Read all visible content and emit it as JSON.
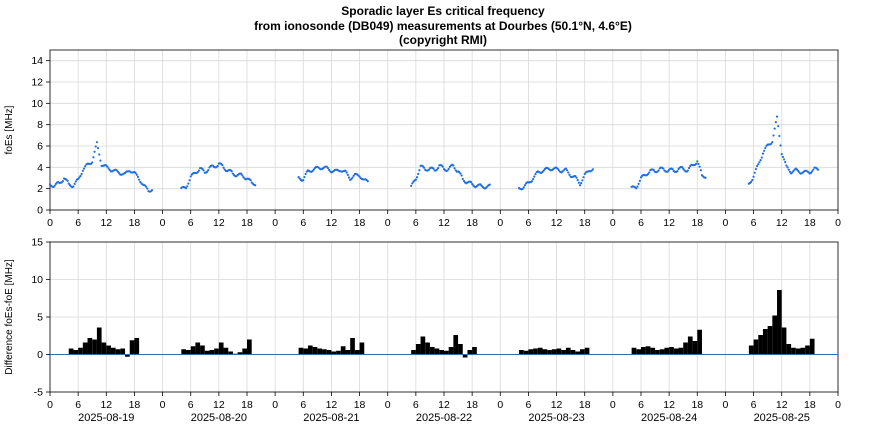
{
  "title": {
    "line1": "Sporadic layer Es critical frequency",
    "line2": "from ionosonde (DB049) measurements at Dourbes (50.1°N, 4.6°E)",
    "line3": "(copyright RMI)"
  },
  "colors": {
    "fo_es": "#1f6fe0",
    "difference": "#000000",
    "zero_line": "#2f6db0",
    "grid": "#d9d9d9"
  },
  "chart_data": [
    {
      "type": "scatter",
      "ylabel": "foEs [MHz]",
      "ylim": [
        0,
        15
      ],
      "yticks": [
        0,
        2,
        4,
        6,
        8,
        10,
        12,
        14
      ],
      "grid": true,
      "xtick_labels": [
        "0",
        "6",
        "12",
        "18",
        "0",
        "6",
        "12",
        "18",
        "0",
        "6",
        "12",
        "18",
        "0",
        "6",
        "12",
        "18",
        "0",
        "6",
        "12",
        "18",
        "0",
        "6",
        "12",
        "18",
        "0",
        "6",
        "12",
        "18",
        "0"
      ],
      "days": [
        {
          "date": "2025-08-19",
          "hours": [
            0,
            1,
            2,
            3,
            4,
            5,
            6,
            7,
            8,
            9,
            10,
            11,
            12,
            13,
            14,
            15,
            16,
            17,
            18,
            19,
            20,
            21,
            22,
            23
          ],
          "values": [
            2.4,
            2.3,
            2.5,
            3.0,
            2.4,
            2.3,
            2.8,
            3.8,
            4.2,
            4.6,
            6.2,
            4.3,
            4.0,
            3.8,
            3.6,
            3.5,
            3.3,
            3.8,
            3.4,
            3.0,
            2.2,
            1.9,
            null,
            null
          ]
        },
        {
          "date": "2025-08-20",
          "hours": [
            0,
            1,
            2,
            3,
            4,
            5,
            6,
            7,
            8,
            9,
            10,
            11,
            12,
            13,
            14,
            15,
            16,
            17,
            18,
            19,
            20,
            21,
            22,
            23
          ],
          "values": [
            null,
            null,
            null,
            null,
            1.9,
            2.2,
            3.0,
            3.6,
            3.8,
            3.6,
            3.9,
            4.1,
            4.3,
            4.0,
            3.7,
            3.4,
            3.3,
            3.2,
            3.0,
            2.5,
            null,
            null,
            null,
            null
          ]
        },
        {
          "date": "2025-08-21",
          "hours": [
            0,
            1,
            2,
            3,
            4,
            5,
            6,
            7,
            8,
            9,
            10,
            11,
            12,
            13,
            14,
            15,
            16,
            17,
            18,
            19,
            20,
            21,
            22,
            23
          ],
          "values": [
            null,
            null,
            null,
            null,
            null,
            3.0,
            2.9,
            3.6,
            3.8,
            3.9,
            4.0,
            3.9,
            3.7,
            3.6,
            3.8,
            3.5,
            3.0,
            3.2,
            3.3,
            2.7,
            null,
            null,
            null,
            null
          ]
        },
        {
          "date": "2025-08-22",
          "hours": [
            0,
            1,
            2,
            3,
            4,
            5,
            6,
            7,
            8,
            9,
            10,
            11,
            12,
            13,
            14,
            15,
            16,
            17,
            18,
            19,
            20,
            21,
            22,
            23
          ],
          "values": [
            null,
            null,
            null,
            null,
            null,
            2.1,
            3.0,
            4.0,
            3.9,
            3.8,
            3.8,
            4.1,
            3.9,
            3.8,
            4.2,
            3.6,
            2.9,
            2.6,
            2.4,
            2.3,
            2.2,
            2.2,
            null,
            null
          ]
        },
        {
          "date": "2025-08-23",
          "hours": [
            0,
            1,
            2,
            3,
            4,
            5,
            6,
            7,
            8,
            9,
            10,
            11,
            12,
            13,
            14,
            15,
            16,
            17,
            18,
            19,
            20,
            21,
            22,
            23
          ],
          "values": [
            null,
            null,
            null,
            null,
            2.0,
            2.2,
            2.5,
            3.0,
            3.5,
            3.7,
            3.8,
            3.9,
            3.8,
            3.7,
            3.7,
            3.3,
            3.0,
            2.5,
            3.2,
            3.8,
            null,
            null,
            null,
            null
          ]
        },
        {
          "date": "2025-08-24",
          "hours": [
            0,
            1,
            2,
            3,
            4,
            5,
            6,
            7,
            8,
            9,
            10,
            11,
            12,
            13,
            14,
            15,
            16,
            17,
            18,
            19,
            20,
            21,
            22,
            23
          ],
          "values": [
            null,
            null,
            null,
            null,
            2.0,
            2.2,
            2.9,
            3.4,
            3.6,
            3.7,
            3.8,
            3.8,
            3.7,
            3.7,
            3.8,
            3.9,
            3.7,
            4.2,
            4.6,
            3.2,
            null,
            null,
            null,
            null
          ]
        },
        {
          "date": "2025-08-25",
          "hours": [
            0,
            1,
            2,
            3,
            4,
            5,
            6,
            7,
            8,
            9,
            10,
            11,
            12,
            13,
            14,
            15,
            16,
            17,
            18,
            19,
            20,
            21,
            22,
            23
          ],
          "values": [
            null,
            null,
            null,
            null,
            null,
            2.4,
            3.2,
            4.2,
            5.4,
            6.0,
            6.5,
            8.6,
            5.4,
            4.0,
            3.6,
            3.7,
            3.6,
            3.5,
            3.6,
            3.8,
            null,
            null,
            null,
            null
          ]
        }
      ]
    },
    {
      "type": "bar",
      "ylabel": "Difference foEs-foE [MHz]",
      "ylim": [
        -5,
        15
      ],
      "yticks": [
        -5,
        0,
        5,
        10,
        15
      ],
      "grid": true,
      "zero_line": true,
      "xtick_labels": [
        "0",
        "6",
        "12",
        "18",
        "0",
        "6",
        "12",
        "18",
        "0",
        "6",
        "12",
        "18",
        "0",
        "6",
        "12",
        "18",
        "0",
        "6",
        "12",
        "18",
        "0",
        "6",
        "12",
        "18",
        "0",
        "6",
        "12",
        "18",
        "0"
      ],
      "date_labels": [
        "2025-08-19",
        "2025-08-20",
        "2025-08-21",
        "2025-08-22",
        "2025-08-23",
        "2025-08-24",
        "2025-08-25"
      ],
      "days": [
        {
          "date": "2025-08-19",
          "hours": [
            4,
            5,
            6,
            7,
            8,
            9,
            10,
            11,
            12,
            13,
            14,
            15,
            16,
            17,
            18,
            19
          ],
          "values": [
            0.8,
            0.6,
            0.9,
            1.6,
            2.2,
            2.0,
            3.6,
            1.6,
            1.2,
            0.9,
            0.7,
            0.8,
            -0.3,
            1.9,
            2.2,
            null
          ]
        },
        {
          "date": "2025-08-20",
          "hours": [
            4,
            5,
            6,
            7,
            8,
            9,
            10,
            11,
            12,
            13,
            14,
            15,
            16,
            17,
            18,
            19
          ],
          "values": [
            0.7,
            0.6,
            1.1,
            1.6,
            1.2,
            0.5,
            0.6,
            0.8,
            1.6,
            0.9,
            0.4,
            0.1,
            0.3,
            0.8,
            2.0,
            null
          ]
        },
        {
          "date": "2025-08-21",
          "hours": [
            4,
            5,
            6,
            7,
            8,
            9,
            10,
            11,
            12,
            13,
            14,
            15,
            16,
            17,
            18,
            19
          ],
          "values": [
            null,
            0.9,
            0.8,
            1.2,
            1.0,
            0.8,
            0.7,
            0.6,
            0.4,
            0.5,
            1.1,
            0.6,
            2.2,
            0.6,
            1.6,
            null
          ]
        },
        {
          "date": "2025-08-22",
          "hours": [
            4,
            5,
            6,
            7,
            8,
            9,
            10,
            11,
            12,
            13,
            14,
            15,
            16,
            17,
            18,
            19
          ],
          "values": [
            null,
            0.6,
            1.4,
            2.4,
            1.6,
            1.0,
            0.8,
            0.6,
            0.5,
            1.0,
            2.6,
            1.4,
            -0.4,
            0.6,
            1.0,
            null
          ]
        },
        {
          "date": "2025-08-23",
          "hours": [
            4,
            5,
            6,
            7,
            8,
            9,
            10,
            11,
            12,
            13,
            14,
            15,
            16,
            17,
            18,
            19
          ],
          "values": [
            0.6,
            0.5,
            0.7,
            0.8,
            0.9,
            0.7,
            0.6,
            0.7,
            0.8,
            0.6,
            0.9,
            0.6,
            0.4,
            0.7,
            0.9,
            null
          ]
        },
        {
          "date": "2025-08-24",
          "hours": [
            4,
            5,
            6,
            7,
            8,
            9,
            10,
            11,
            12,
            13,
            14,
            15,
            16,
            17,
            18,
            19
          ],
          "values": [
            0.9,
            0.7,
            1.0,
            1.1,
            0.9,
            0.6,
            0.7,
            0.9,
            1.0,
            0.8,
            0.9,
            1.6,
            2.4,
            1.8,
            3.3,
            null
          ]
        },
        {
          "date": "2025-08-25",
          "hours": [
            4,
            5,
            6,
            7,
            8,
            9,
            10,
            11,
            12,
            13,
            14,
            15,
            16,
            17,
            18,
            19
          ],
          "values": [
            null,
            1.2,
            2.0,
            2.6,
            3.4,
            3.8,
            5.2,
            8.6,
            3.6,
            1.4,
            0.9,
            0.8,
            0.9,
            1.2,
            2.1,
            null
          ]
        }
      ]
    }
  ]
}
